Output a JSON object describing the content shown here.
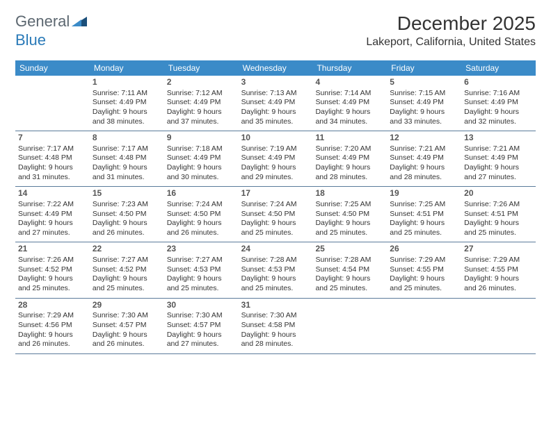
{
  "logo": {
    "general": "General",
    "blue": "Blue"
  },
  "title": "December 2025",
  "location": "Lakeport, California, United States",
  "dayNames": [
    "Sunday",
    "Monday",
    "Tuesday",
    "Wednesday",
    "Thursday",
    "Friday",
    "Saturday"
  ],
  "colors": {
    "headerBar": "#3b8bc8",
    "weekDivider": "#5a7a9a",
    "logoGray": "#5c6770",
    "logoBlue": "#2a7ab8",
    "logoDark": "#1b4f7a"
  },
  "weeks": [
    [
      null,
      {
        "n": "1",
        "sr": "Sunrise: 7:11 AM",
        "ss": "Sunset: 4:49 PM",
        "d1": "Daylight: 9 hours",
        "d2": "and 38 minutes."
      },
      {
        "n": "2",
        "sr": "Sunrise: 7:12 AM",
        "ss": "Sunset: 4:49 PM",
        "d1": "Daylight: 9 hours",
        "d2": "and 37 minutes."
      },
      {
        "n": "3",
        "sr": "Sunrise: 7:13 AM",
        "ss": "Sunset: 4:49 PM",
        "d1": "Daylight: 9 hours",
        "d2": "and 35 minutes."
      },
      {
        "n": "4",
        "sr": "Sunrise: 7:14 AM",
        "ss": "Sunset: 4:49 PM",
        "d1": "Daylight: 9 hours",
        "d2": "and 34 minutes."
      },
      {
        "n": "5",
        "sr": "Sunrise: 7:15 AM",
        "ss": "Sunset: 4:49 PM",
        "d1": "Daylight: 9 hours",
        "d2": "and 33 minutes."
      },
      {
        "n": "6",
        "sr": "Sunrise: 7:16 AM",
        "ss": "Sunset: 4:49 PM",
        "d1": "Daylight: 9 hours",
        "d2": "and 32 minutes."
      }
    ],
    [
      {
        "n": "7",
        "sr": "Sunrise: 7:17 AM",
        "ss": "Sunset: 4:48 PM",
        "d1": "Daylight: 9 hours",
        "d2": "and 31 minutes."
      },
      {
        "n": "8",
        "sr": "Sunrise: 7:17 AM",
        "ss": "Sunset: 4:48 PM",
        "d1": "Daylight: 9 hours",
        "d2": "and 31 minutes."
      },
      {
        "n": "9",
        "sr": "Sunrise: 7:18 AM",
        "ss": "Sunset: 4:49 PM",
        "d1": "Daylight: 9 hours",
        "d2": "and 30 minutes."
      },
      {
        "n": "10",
        "sr": "Sunrise: 7:19 AM",
        "ss": "Sunset: 4:49 PM",
        "d1": "Daylight: 9 hours",
        "d2": "and 29 minutes."
      },
      {
        "n": "11",
        "sr": "Sunrise: 7:20 AM",
        "ss": "Sunset: 4:49 PM",
        "d1": "Daylight: 9 hours",
        "d2": "and 28 minutes."
      },
      {
        "n": "12",
        "sr": "Sunrise: 7:21 AM",
        "ss": "Sunset: 4:49 PM",
        "d1": "Daylight: 9 hours",
        "d2": "and 28 minutes."
      },
      {
        "n": "13",
        "sr": "Sunrise: 7:21 AM",
        "ss": "Sunset: 4:49 PM",
        "d1": "Daylight: 9 hours",
        "d2": "and 27 minutes."
      }
    ],
    [
      {
        "n": "14",
        "sr": "Sunrise: 7:22 AM",
        "ss": "Sunset: 4:49 PM",
        "d1": "Daylight: 9 hours",
        "d2": "and 27 minutes."
      },
      {
        "n": "15",
        "sr": "Sunrise: 7:23 AM",
        "ss": "Sunset: 4:50 PM",
        "d1": "Daylight: 9 hours",
        "d2": "and 26 minutes."
      },
      {
        "n": "16",
        "sr": "Sunrise: 7:24 AM",
        "ss": "Sunset: 4:50 PM",
        "d1": "Daylight: 9 hours",
        "d2": "and 26 minutes."
      },
      {
        "n": "17",
        "sr": "Sunrise: 7:24 AM",
        "ss": "Sunset: 4:50 PM",
        "d1": "Daylight: 9 hours",
        "d2": "and 25 minutes."
      },
      {
        "n": "18",
        "sr": "Sunrise: 7:25 AM",
        "ss": "Sunset: 4:50 PM",
        "d1": "Daylight: 9 hours",
        "d2": "and 25 minutes."
      },
      {
        "n": "19",
        "sr": "Sunrise: 7:25 AM",
        "ss": "Sunset: 4:51 PM",
        "d1": "Daylight: 9 hours",
        "d2": "and 25 minutes."
      },
      {
        "n": "20",
        "sr": "Sunrise: 7:26 AM",
        "ss": "Sunset: 4:51 PM",
        "d1": "Daylight: 9 hours",
        "d2": "and 25 minutes."
      }
    ],
    [
      {
        "n": "21",
        "sr": "Sunrise: 7:26 AM",
        "ss": "Sunset: 4:52 PM",
        "d1": "Daylight: 9 hours",
        "d2": "and 25 minutes."
      },
      {
        "n": "22",
        "sr": "Sunrise: 7:27 AM",
        "ss": "Sunset: 4:52 PM",
        "d1": "Daylight: 9 hours",
        "d2": "and 25 minutes."
      },
      {
        "n": "23",
        "sr": "Sunrise: 7:27 AM",
        "ss": "Sunset: 4:53 PM",
        "d1": "Daylight: 9 hours",
        "d2": "and 25 minutes."
      },
      {
        "n": "24",
        "sr": "Sunrise: 7:28 AM",
        "ss": "Sunset: 4:53 PM",
        "d1": "Daylight: 9 hours",
        "d2": "and 25 minutes."
      },
      {
        "n": "25",
        "sr": "Sunrise: 7:28 AM",
        "ss": "Sunset: 4:54 PM",
        "d1": "Daylight: 9 hours",
        "d2": "and 25 minutes."
      },
      {
        "n": "26",
        "sr": "Sunrise: 7:29 AM",
        "ss": "Sunset: 4:55 PM",
        "d1": "Daylight: 9 hours",
        "d2": "and 25 minutes."
      },
      {
        "n": "27",
        "sr": "Sunrise: 7:29 AM",
        "ss": "Sunset: 4:55 PM",
        "d1": "Daylight: 9 hours",
        "d2": "and 26 minutes."
      }
    ],
    [
      {
        "n": "28",
        "sr": "Sunrise: 7:29 AM",
        "ss": "Sunset: 4:56 PM",
        "d1": "Daylight: 9 hours",
        "d2": "and 26 minutes."
      },
      {
        "n": "29",
        "sr": "Sunrise: 7:30 AM",
        "ss": "Sunset: 4:57 PM",
        "d1": "Daylight: 9 hours",
        "d2": "and 26 minutes."
      },
      {
        "n": "30",
        "sr": "Sunrise: 7:30 AM",
        "ss": "Sunset: 4:57 PM",
        "d1": "Daylight: 9 hours",
        "d2": "and 27 minutes."
      },
      {
        "n": "31",
        "sr": "Sunrise: 7:30 AM",
        "ss": "Sunset: 4:58 PM",
        "d1": "Daylight: 9 hours",
        "d2": "and 28 minutes."
      },
      null,
      null,
      null
    ]
  ]
}
